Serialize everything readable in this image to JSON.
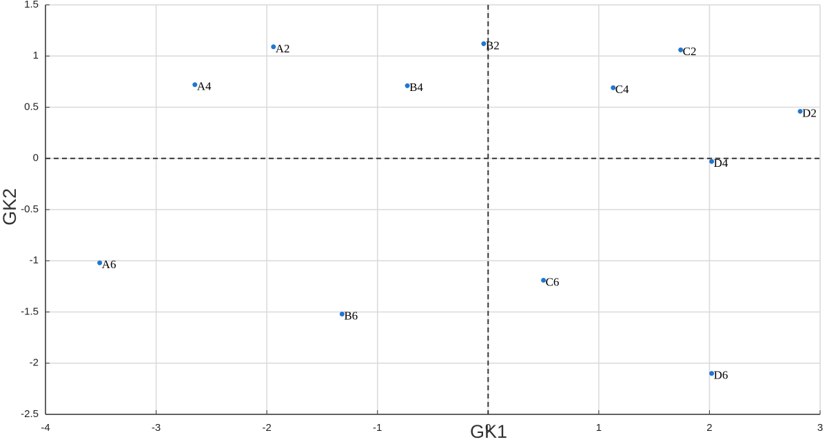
{
  "chart_data": {
    "type": "scatter",
    "xlabel": "GK1",
    "ylabel": "GK2",
    "labels": [
      "A2",
      "A4",
      "A6",
      "B2",
      "B4",
      "B6",
      "C2",
      "C4",
      "C6",
      "D2",
      "D4",
      "D6"
    ],
    "x": [
      -1.94,
      -2.65,
      -3.51,
      -0.04,
      -0.73,
      -1.32,
      1.74,
      1.13,
      0.5,
      2.82,
      2.02,
      2.02
    ],
    "y": [
      1.09,
      0.72,
      -1.02,
      1.12,
      0.71,
      -1.52,
      1.06,
      0.69,
      -1.19,
      0.46,
      -0.03,
      -2.1
    ],
    "color": "#1f77d0",
    "xlim": [
      -4,
      3
    ],
    "xticks": [
      -4,
      -3,
      -2,
      -1,
      0,
      1,
      2,
      3
    ],
    "ylim": [
      -2.5,
      1.5
    ],
    "yticks": [
      -2.5,
      -2,
      -1.5,
      -1,
      -0.5,
      0,
      0.5,
      1,
      1.5
    ],
    "grid": true,
    "vlines": [
      0
    ],
    "hlines": [
      0
    ]
  }
}
